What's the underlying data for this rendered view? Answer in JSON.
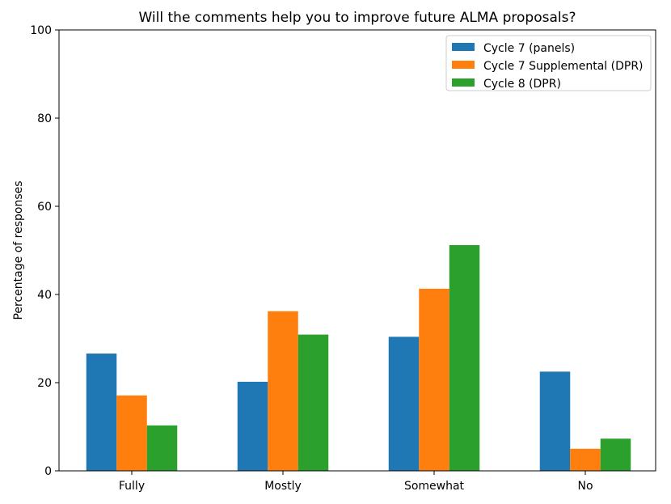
{
  "chart_data": {
    "type": "bar",
    "title": "Will the comments help you to improve future ALMA proposals?",
    "xlabel": "",
    "ylabel": "Percentage of responses",
    "ylim": [
      0,
      100
    ],
    "yticks": [
      0,
      20,
      40,
      60,
      80,
      100
    ],
    "categories": [
      "Fully",
      "Mostly",
      "Somewhat",
      "No"
    ],
    "series": [
      {
        "name": "Cycle 7 (panels)",
        "color": "#1f77b4",
        "values": [
          26.6,
          20.2,
          30.4,
          22.5
        ]
      },
      {
        "name": "Cycle 7 Supplemental (DPR)",
        "color": "#ff7f0e",
        "values": [
          17.1,
          36.2,
          41.3,
          5.0
        ]
      },
      {
        "name": "Cycle 8 (DPR)",
        "color": "#2ca02c",
        "values": [
          10.3,
          30.9,
          51.2,
          7.3
        ]
      }
    ],
    "grid": false,
    "legend_position": "top-right"
  }
}
